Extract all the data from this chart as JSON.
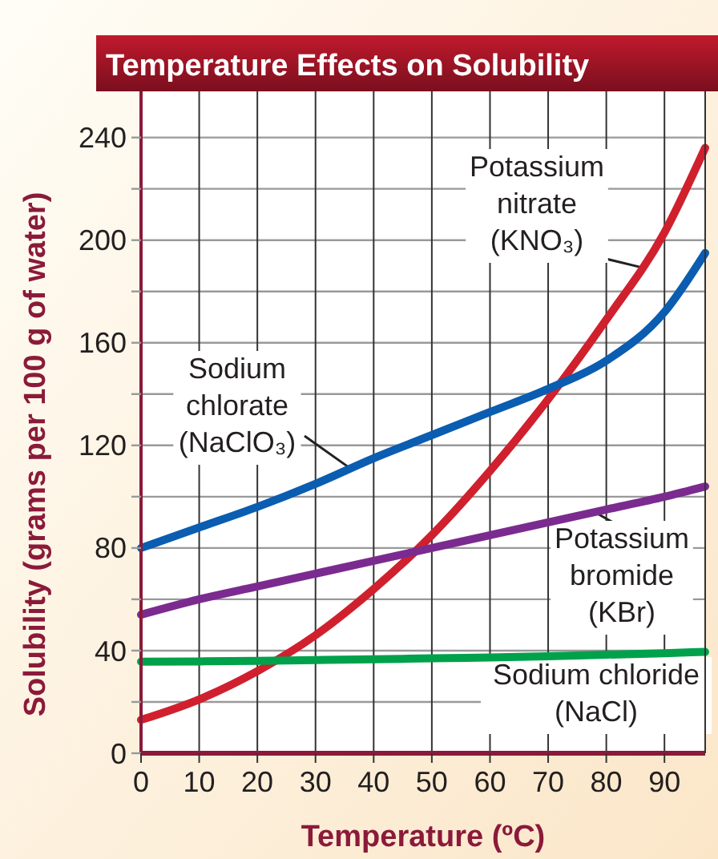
{
  "chart_data": {
    "type": "line",
    "title": "Temperature Effects on Solubility",
    "xlabel": "Temperature (ºC)",
    "ylabel": "Solubility (grams per 100 g of water)",
    "x": [
      0,
      10,
      20,
      30,
      40,
      50,
      60,
      70,
      80,
      90,
      97
    ],
    "xlim": [
      0,
      97
    ],
    "xticks": [
      0,
      10,
      20,
      30,
      40,
      50,
      60,
      70,
      80,
      90
    ],
    "ylim": [
      0,
      258
    ],
    "yticks": [
      0,
      {
        "value": 20,
        "label": null
      },
      40,
      {
        "value": 60,
        "label": null
      },
      80,
      {
        "value": 100,
        "label": null
      },
      120,
      {
        "value": 140,
        "label": null
      },
      160,
      {
        "value": 180,
        "label": null
      },
      200,
      {
        "value": 220,
        "label": null
      },
      240
    ],
    "grid": true,
    "marker": "none",
    "line_style": "solid",
    "series": [
      {
        "name": "Potassium nitrate (KNO₃)",
        "color": "#d0202e",
        "values": [
          13,
          21,
          32,
          46,
          64,
          85,
          110,
          138,
          169,
          203,
          236
        ]
      },
      {
        "name": "Sodium chlorate (NaClO₃)",
        "color": "#0a5db0",
        "values": [
          80,
          88,
          96,
          105,
          115,
          124,
          133,
          142,
          153,
          172,
          195
        ]
      },
      {
        "name": "Potassium bromide (KBr)",
        "color": "#7b2b8f",
        "values": [
          54,
          60,
          65,
          70,
          75,
          80,
          85,
          90,
          95,
          100,
          104
        ]
      },
      {
        "name": "Sodium chloride (NaCl)",
        "color": "#00a14b",
        "values": [
          35.7,
          35.8,
          36,
          36.3,
          36.6,
          37,
          37.3,
          37.8,
          38.4,
          39,
          39.5
        ]
      }
    ]
  }
}
